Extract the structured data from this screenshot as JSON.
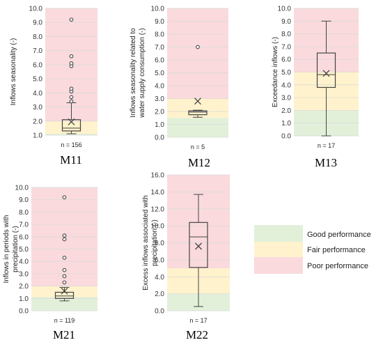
{
  "chart_data": [
    {
      "type": "boxplot",
      "id": "m11",
      "title": "M11",
      "ylabel": "Inflows seasonality (-)",
      "n_label": "n = 156",
      "ylim": [
        1.0,
        10.0
      ],
      "yticks": [
        1.0,
        2.0,
        3.0,
        4.0,
        5.0,
        6.0,
        7.0,
        8.0,
        9.0,
        10.0
      ],
      "bands": {
        "good": [
          1.0,
          1.1
        ],
        "fair": [
          1.1,
          2.0
        ],
        "poor": [
          2.0,
          10.0
        ]
      },
      "box": {
        "whisker_low": 1.1,
        "q1": 1.3,
        "median": 1.5,
        "q3": 2.1,
        "whisker_high": 3.3,
        "mean": 1.95
      },
      "outliers": [
        3.4,
        3.7,
        4.1,
        4.3,
        5.9,
        6.1,
        6.6,
        9.2
      ]
    },
    {
      "type": "boxplot",
      "id": "m12",
      "title": "M12",
      "ylabel": "Inflows seasonality related to water supply consumption (-)",
      "n_label": "n = 5",
      "ylim": [
        0.0,
        10.0
      ],
      "yticks": [
        0.0,
        1.0,
        2.0,
        3.0,
        4.0,
        5.0,
        6.0,
        7.0,
        8.0,
        9.0,
        10.0
      ],
      "bands": {
        "good": [
          0.0,
          1.5
        ],
        "fair": [
          1.5,
          3.0
        ],
        "poor": [
          3.0,
          10.0
        ]
      },
      "box": {
        "whisker_low": 1.55,
        "q1": 1.75,
        "median": 1.95,
        "q3": 2.05,
        "whisker_high": 2.1,
        "mean": 2.8
      },
      "outliers": [
        7.0
      ]
    },
    {
      "type": "boxplot",
      "id": "m13",
      "title": "M13",
      "ylabel": "Exceedance inflows (-)",
      "n_label": "n = 17",
      "ylim": [
        0.0,
        10.0
      ],
      "yticks": [
        0.0,
        1.0,
        2.0,
        3.0,
        4.0,
        5.0,
        6.0,
        7.0,
        8.0,
        9.0,
        10.0
      ],
      "bands": {
        "good": [
          0.0,
          2.0
        ],
        "fair": [
          2.0,
          5.0
        ],
        "poor": [
          5.0,
          10.0
        ]
      },
      "box": {
        "whisker_low": 0.0,
        "q1": 3.8,
        "median": 4.8,
        "q3": 6.5,
        "whisker_high": 9.0,
        "mean": 4.9
      },
      "outliers": []
    },
    {
      "type": "boxplot",
      "id": "m21",
      "title": "M21",
      "ylabel": "Inflows in periods with precipitation (-)",
      "n_label": "n = 119",
      "ylim": [
        0.0,
        10.0
      ],
      "yticks": [
        0.0,
        1.0,
        2.0,
        3.0,
        4.0,
        5.0,
        6.0,
        7.0,
        8.0,
        9.0,
        10.0
      ],
      "bands": {
        "good": [
          0.0,
          1.1
        ],
        "fair": [
          1.1,
          2.0
        ],
        "poor": [
          2.0,
          10.0
        ]
      },
      "box": {
        "whisker_low": 0.8,
        "q1": 1.0,
        "median": 1.2,
        "q3": 1.5,
        "whisker_high": 1.9,
        "mean": 1.6
      },
      "outliers": [
        2.3,
        2.8,
        3.3,
        4.3,
        5.8,
        6.1,
        9.2
      ]
    },
    {
      "type": "boxplot",
      "id": "m22",
      "title": "M22",
      "ylabel": "Excess inflows associated with precipitation (-)",
      "n_label": "n = 17",
      "ylim": [
        0.0,
        16.0
      ],
      "yticks": [
        0.0,
        2.0,
        4.0,
        6.0,
        8.0,
        10.0,
        12.0,
        14.0,
        16.0
      ],
      "bands": {
        "good": [
          0.0,
          2.0
        ],
        "fair": [
          2.0,
          5.0
        ],
        "poor": [
          5.0,
          16.0
        ]
      },
      "box": {
        "whisker_low": 0.5,
        "q1": 5.1,
        "median": 8.7,
        "q3": 10.4,
        "whisker_high": 13.7,
        "mean": 7.6
      },
      "outliers": []
    }
  ],
  "legend": {
    "items": [
      {
        "key": "good",
        "label": "Good performance",
        "color": "#e2f0d9"
      },
      {
        "key": "fair",
        "label": "Fair performance",
        "color": "#fff2cc"
      },
      {
        "key": "poor",
        "label": "Poor performance",
        "color": "#fadadd"
      }
    ]
  },
  "colors": {
    "good": "#e2f0d9",
    "fair": "#fff2cc",
    "poor": "#fadadd",
    "grid": "#d9d9d9",
    "box_stroke": "#444444"
  }
}
